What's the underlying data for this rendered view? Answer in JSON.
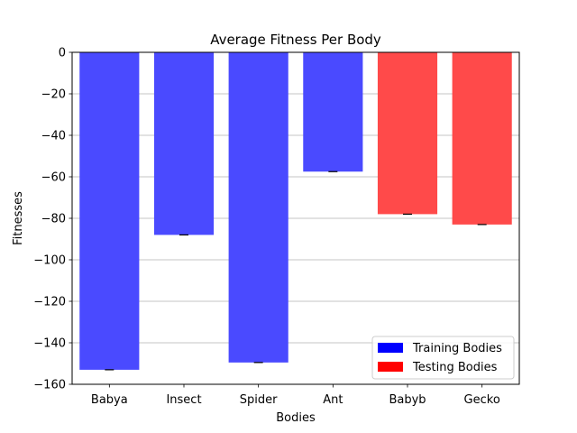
{
  "chart_data": {
    "type": "bar",
    "title": "Average Fitness Per Body",
    "xlabel": "Bodies",
    "ylabel": "Fitnesses",
    "ylim": [
      -160,
      0
    ],
    "yticks": [
      0,
      -20,
      -40,
      -60,
      -80,
      -100,
      -120,
      -140,
      -160
    ],
    "grid": "horizontal",
    "legend_position": "lower-right",
    "categories": [
      "Babya",
      "Insect",
      "Spider",
      "Ant",
      "Babyb",
      "Gecko"
    ],
    "values": [
      -153,
      -88,
      -149.5,
      -57.5,
      -78,
      -83
    ],
    "groups": [
      "Training Bodies",
      "Training Bodies",
      "Training Bodies",
      "Training Bodies",
      "Testing Bodies",
      "Testing Bodies"
    ],
    "error_bars": true,
    "legend": [
      {
        "label": "Training Bodies",
        "color": "#0000ff"
      },
      {
        "label": "Testing Bodies",
        "color": "#ff0000"
      }
    ],
    "bar_colors": {
      "Training Bodies": "#4a4aff",
      "Testing Bodies": "#ff4a4a"
    }
  }
}
